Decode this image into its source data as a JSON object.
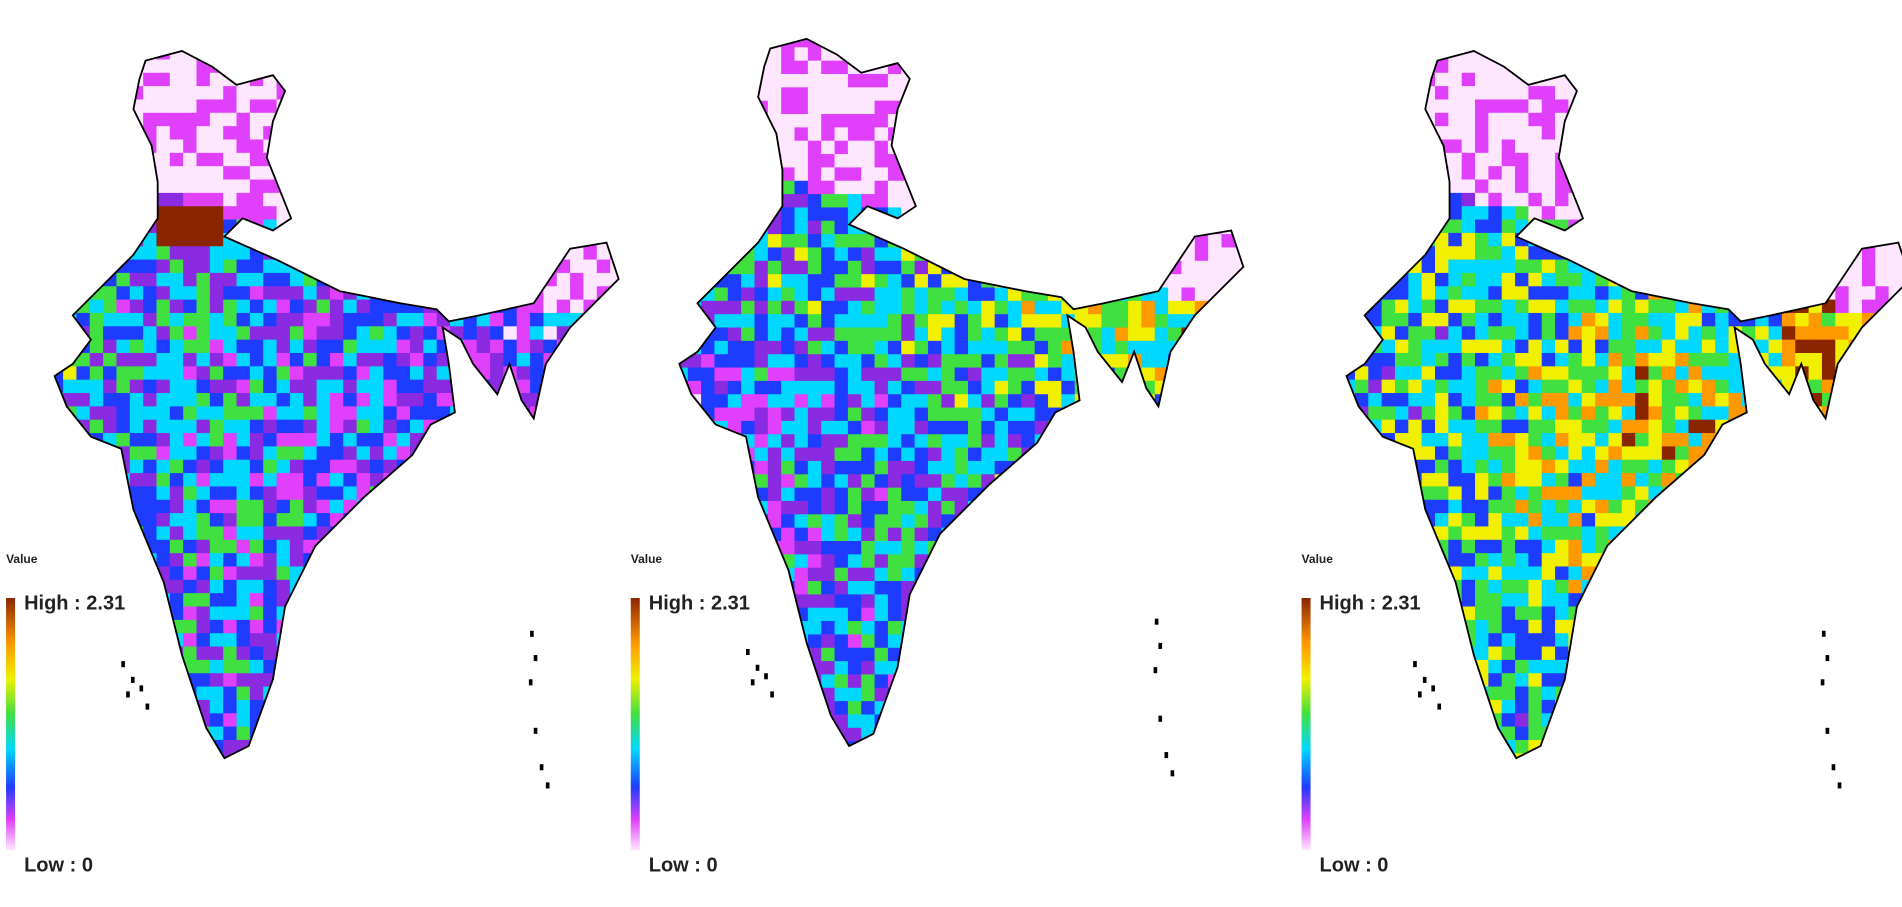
{
  "panels": [
    {
      "legend_title": "Value",
      "high_label": "High : 2.31",
      "low_label": "Low : 0"
    },
    {
      "legend_title": "Value",
      "high_label": "High : 2.31",
      "low_label": "Low : 0"
    },
    {
      "legend_title": "Value",
      "high_label": "High : 2.31",
      "low_label": "Low : 0"
    }
  ]
}
